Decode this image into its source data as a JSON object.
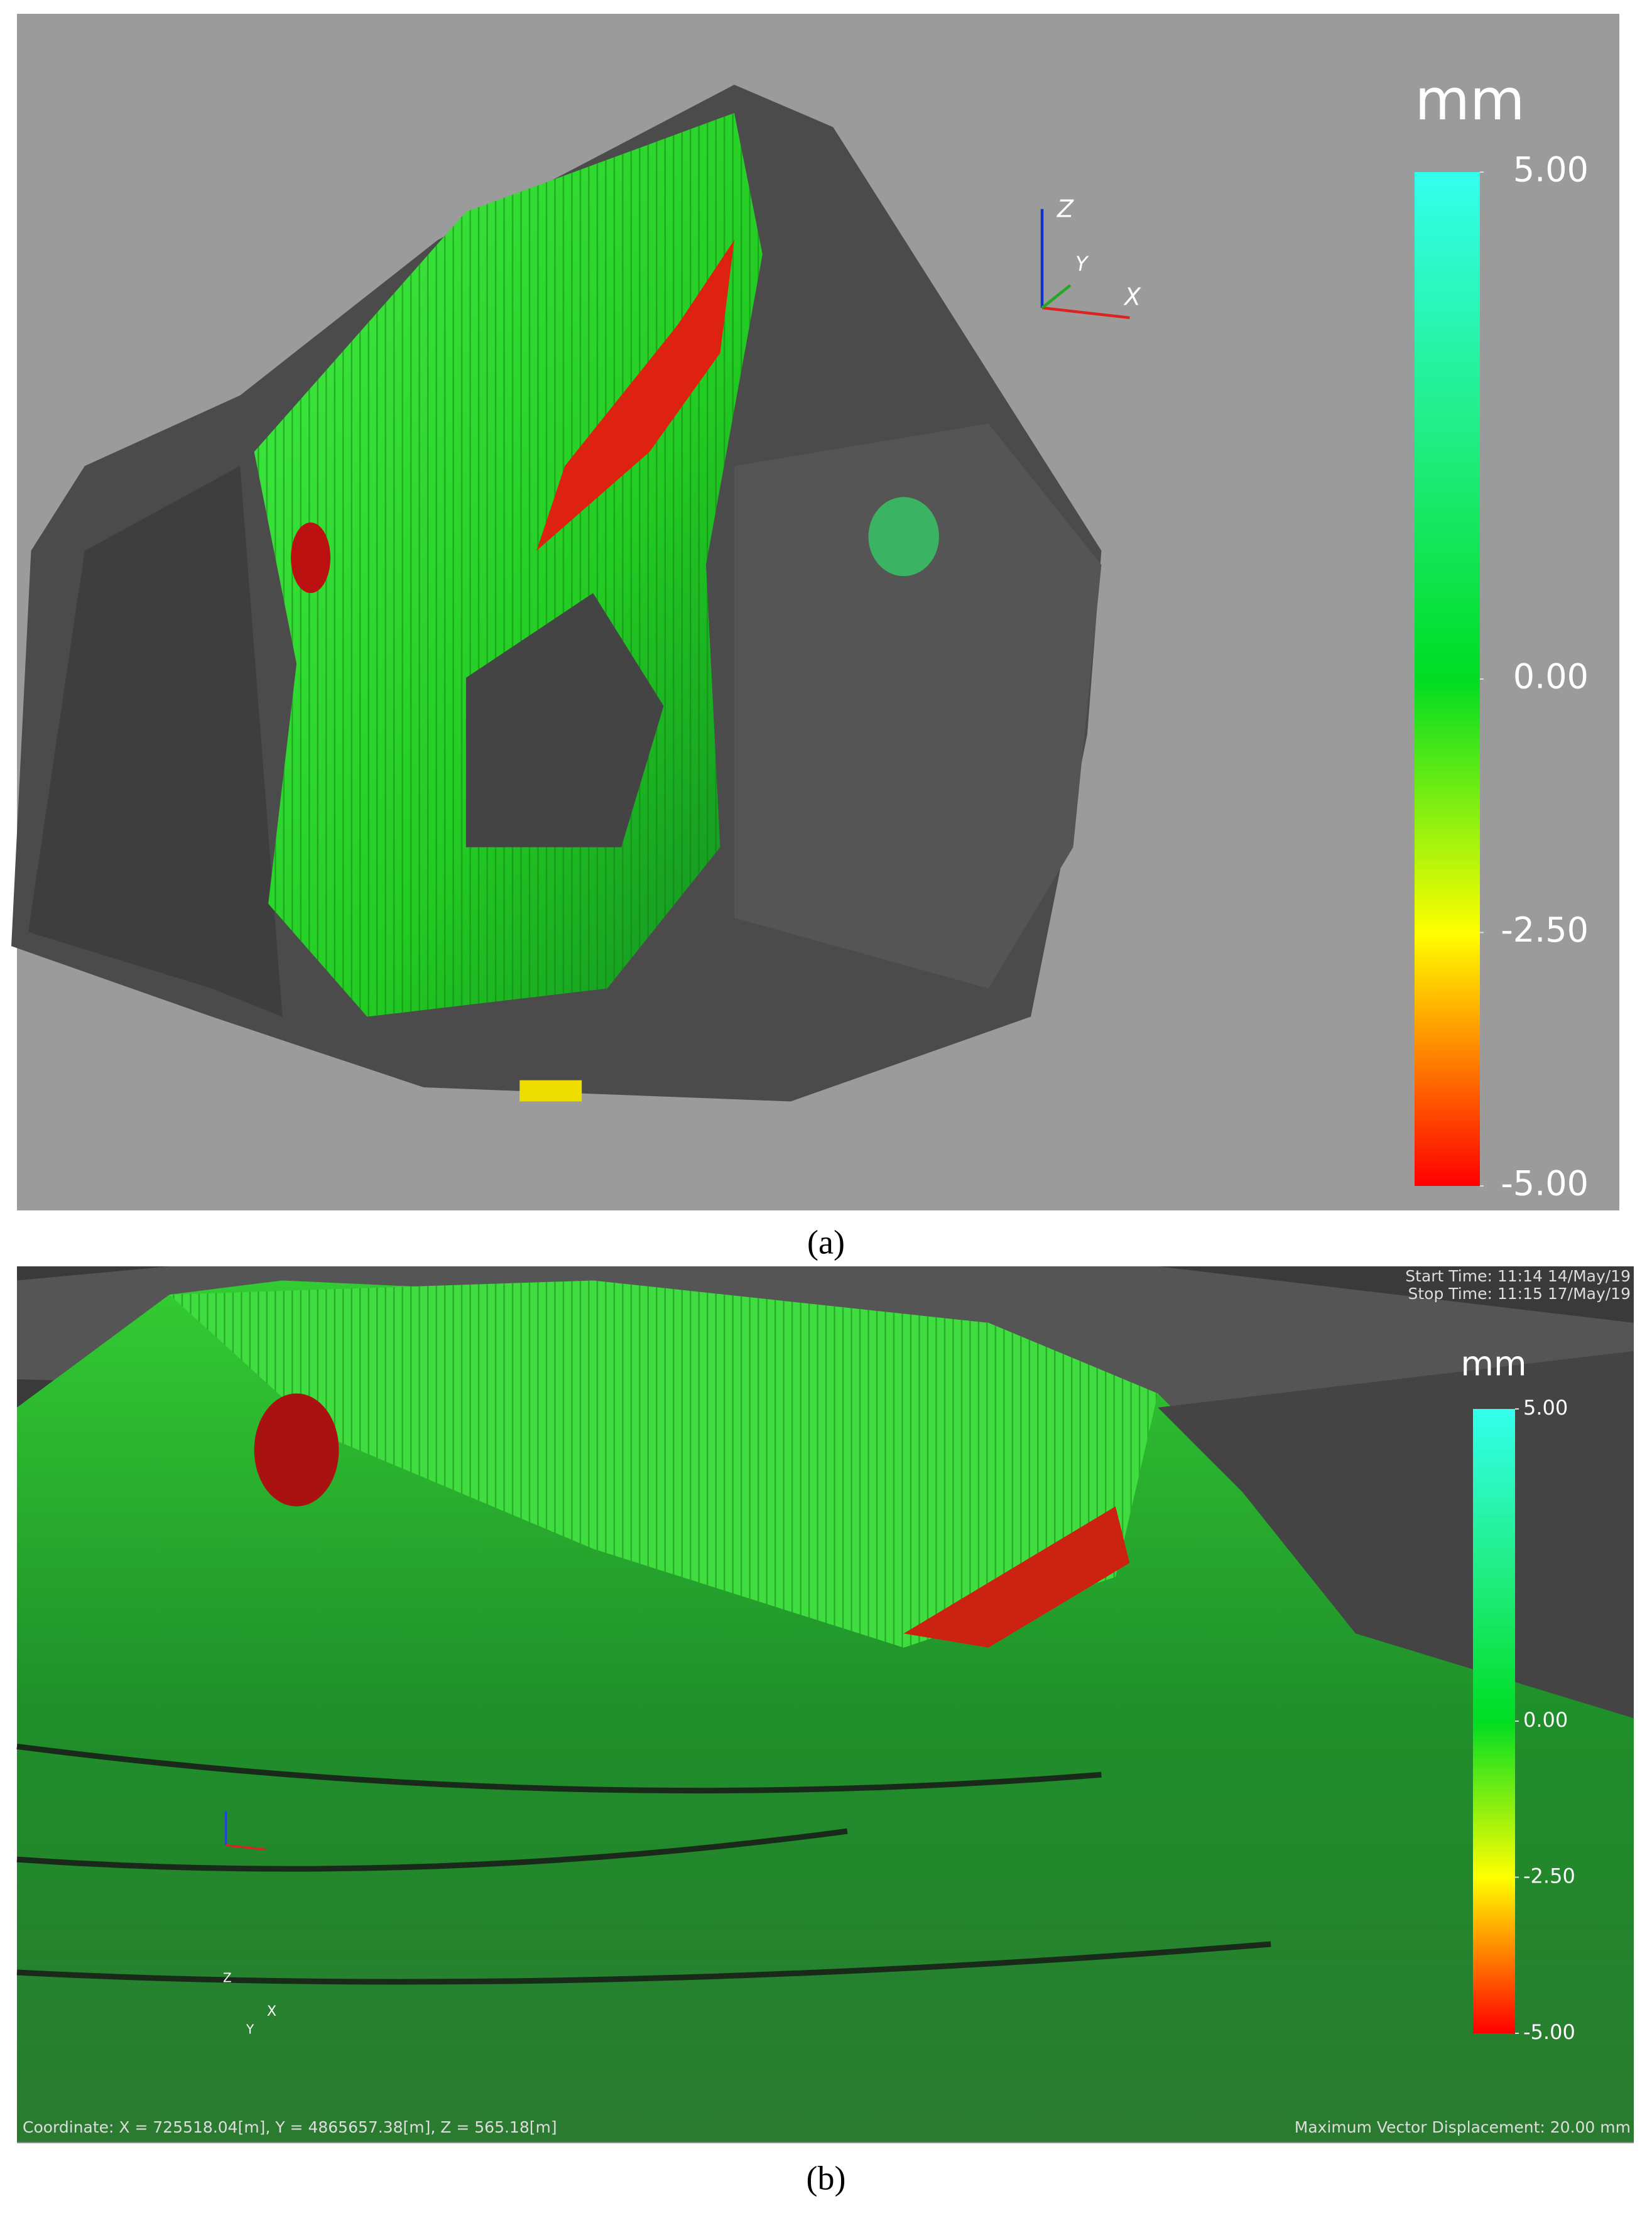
{
  "panel_a": {
    "colorbar": {
      "unit": "mm",
      "range": [
        -5,
        5
      ],
      "ticks": [
        {
          "value": 5,
          "label": "5.00"
        },
        {
          "value": 0,
          "label": "0.00"
        },
        {
          "value": -2.5,
          "label": "-2.50"
        },
        {
          "value": -5,
          "label": "-5.00"
        }
      ]
    },
    "axes": {
      "z": "Z",
      "y": "Y",
      "x": "X"
    },
    "caption": "(a)"
  },
  "panel_b": {
    "start_time": "Start Time: 11:14 14/May/19",
    "stop_time": "Stop Time: 11:15 17/May/19",
    "colorbar": {
      "unit": "mm",
      "range": [
        -5,
        5
      ],
      "ticks": [
        {
          "value": 5,
          "label": "5.00"
        },
        {
          "value": 0,
          "label": "0.00"
        },
        {
          "value": -2.5,
          "label": "-2.50"
        },
        {
          "value": -5,
          "label": "-5.00"
        }
      ]
    },
    "axes": {
      "z": "Z",
      "y": "Y",
      "x": "X"
    },
    "coordinate": "Coordinate: X = 725518.04[m], Y = 4865657.38[m], Z = 565.18[m]",
    "max_displacement": "Maximum Vector Displacement: 20.00 mm",
    "caption": "(b)"
  }
}
